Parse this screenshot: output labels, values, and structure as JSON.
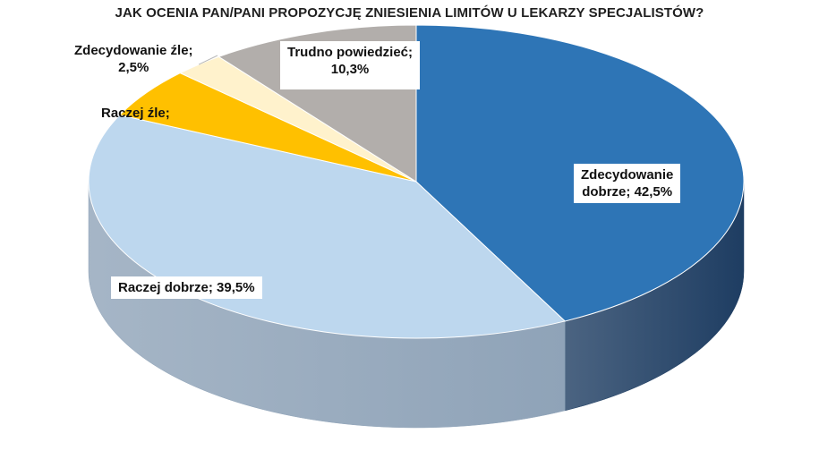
{
  "chart_data": {
    "type": "pie",
    "title": "JAK OCENIA PAN/PANI PROPOZYCJĘ ZNIESIENIA LIMITÓW U LEKARZY SPECJALISTÓW?",
    "slices": [
      {
        "label": "Zdecydowanie dobrze",
        "value": 42.5,
        "display": "42,5%",
        "color": "#2e75b6",
        "side_color": "#1e3d62"
      },
      {
        "label": "Raczej dobrze",
        "value": 39.5,
        "display": "39,5%",
        "color": "#bdd7ee",
        "side_color": "#8fa3b8"
      },
      {
        "label": "Raczej źle",
        "value": 5.2,
        "display": "",
        "color": "#ffc000",
        "side_color": "#c79400"
      },
      {
        "label": "Zdecydowanie źle",
        "value": 2.5,
        "display": "2,5%",
        "color": "#fff2cc",
        "side_color": "#d6c79c"
      },
      {
        "label": "Trudno powiedzieć",
        "value": 10.3,
        "display": "10,3%",
        "color": "#b2aeab",
        "side_color": "#86827f"
      }
    ],
    "data_labels": [
      {
        "line1": "Zdecydowanie",
        "line2": "dobrze; 42,5%"
      },
      {
        "line1": "Raczej dobrze; 39,5%"
      },
      {
        "line1": "Raczej źle;"
      },
      {
        "line1": "Zdecydowanie źle;",
        "line2": "2,5%"
      },
      {
        "line1": "Trudno powiedzieć;",
        "line2": "10,3%"
      }
    ],
    "legend": "none"
  }
}
